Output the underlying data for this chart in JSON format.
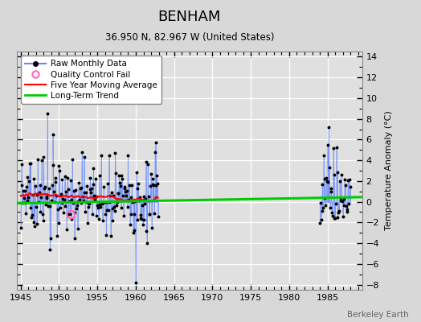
{
  "title": "BENHAM",
  "subtitle": "36.950 N, 82.967 W (United States)",
  "ylabel": "Temperature Anomaly (°C)",
  "watermark": "Berkeley Earth",
  "xlim": [
    1944.5,
    1989.5
  ],
  "ylim": [
    -8.5,
    14.5
  ],
  "yticks": [
    -8,
    -6,
    -4,
    -2,
    0,
    2,
    4,
    6,
    8,
    10,
    12,
    14
  ],
  "xticks": [
    1945,
    1950,
    1955,
    1960,
    1965,
    1970,
    1975,
    1980,
    1985
  ],
  "fig_bg_color": "#d8d8d8",
  "plot_bg_color": "#e0e0e0",
  "grid_color": "#ffffff",
  "raw_line_color": "#6688ff",
  "raw_marker_color": "#000000",
  "ma_color": "#ff0000",
  "trend_color": "#00cc00",
  "qc_color": "#ff69b4",
  "legend_labels": [
    "Raw Monthly Data",
    "Quality Control Fail",
    "Five Year Moving Average",
    "Long-Term Trend"
  ],
  "period1_start": 1945.0,
  "period1_end": 1963.0,
  "period2_start": 1984.0,
  "period2_end": 1988.0
}
